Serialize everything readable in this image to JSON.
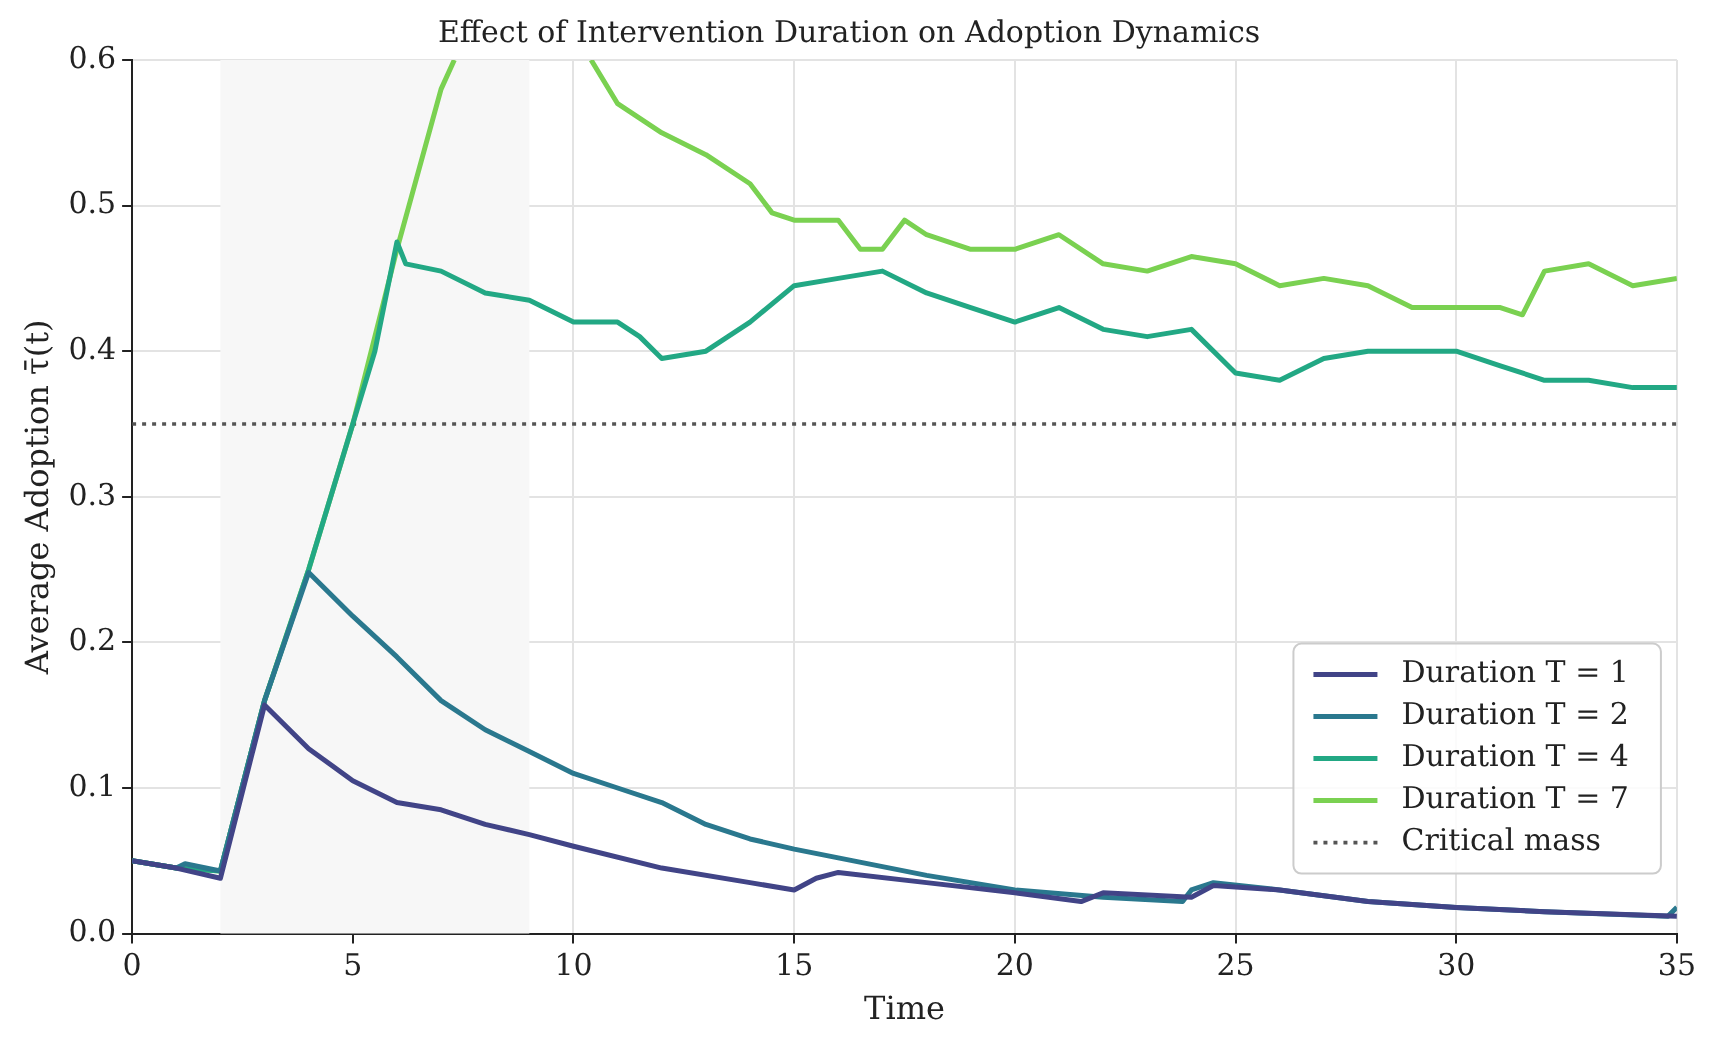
{
  "chart_data": {
    "type": "line",
    "title": "Effect of Intervention Duration on Adoption Dynamics",
    "xlabel": "Time",
    "ylabel": "Average Adoption τ̄(t)",
    "xlim": [
      0,
      35
    ],
    "xticks": [
      0,
      5,
      10,
      15,
      20,
      25,
      30,
      35
    ],
    "ylim": [
      0,
      0.6
    ],
    "yticks": [
      {
        "value": 0,
        "label": "0.0"
      },
      0.1,
      0.2,
      0.3,
      0.4,
      0.5,
      0.6
    ],
    "grid": true,
    "legend": "bottom right",
    "marker": "none",
    "line_style": "solid",
    "bands": [
      {
        "axis": "x",
        "from": 2,
        "to": 9,
        "color": "#f7f7f7"
      }
    ],
    "ref_lines": [
      {
        "axis": "y",
        "value": 0.35,
        "label": "Critical mass",
        "color": "#555555",
        "line_style": "dotted"
      }
    ],
    "series": [
      {
        "name": "Duration T = 1",
        "color": "#414487",
        "x": [
          0,
          1,
          2,
          3,
          4,
          5,
          6,
          7,
          8,
          9,
          10,
          12,
          14,
          15,
          15.5,
          16,
          18,
          20,
          21.5,
          22,
          24,
          24.5,
          26,
          28,
          30,
          32,
          35
        ],
        "values": [
          0.05,
          0.045,
          0.038,
          0.157,
          0.127,
          0.105,
          0.09,
          0.085,
          0.075,
          0.068,
          0.06,
          0.045,
          0.035,
          0.03,
          0.038,
          0.042,
          0.035,
          0.028,
          0.022,
          0.028,
          0.025,
          0.033,
          0.03,
          0.022,
          0.018,
          0.015,
          0.012
        ]
      },
      {
        "name": "Duration T = 2",
        "color": "#2a788e",
        "x": [
          0,
          1,
          1.2,
          2,
          3,
          4,
          5,
          6,
          7,
          8,
          9,
          10,
          11,
          12,
          13,
          14,
          15,
          16,
          18,
          20,
          22,
          23.8,
          24,
          24.5,
          26,
          28,
          30,
          32,
          34.8,
          35
        ],
        "values": [
          0.05,
          0.045,
          0.048,
          0.043,
          0.16,
          0.248,
          0.218,
          0.19,
          0.16,
          0.14,
          0.125,
          0.11,
          0.1,
          0.09,
          0.075,
          0.065,
          0.058,
          0.052,
          0.04,
          0.03,
          0.025,
          0.022,
          0.03,
          0.035,
          0.03,
          0.022,
          0.018,
          0.015,
          0.012,
          0.018
        ]
      },
      {
        "name": "Duration T = 4",
        "color": "#22a884",
        "x": [
          0,
          1,
          2,
          3,
          4,
          5,
          5.5,
          6,
          6.2,
          7,
          8,
          9,
          10,
          11,
          11.5,
          12,
          13,
          14,
          15,
          16,
          17,
          18,
          19,
          20,
          21,
          22,
          23,
          24,
          25,
          26,
          27,
          28,
          29,
          30,
          31,
          32,
          33,
          34,
          35
        ],
        "values": [
          0.05,
          0.045,
          0.043,
          0.16,
          0.25,
          0.35,
          0.4,
          0.475,
          0.46,
          0.455,
          0.44,
          0.435,
          0.42,
          0.42,
          0.41,
          0.395,
          0.4,
          0.42,
          0.445,
          0.45,
          0.455,
          0.44,
          0.43,
          0.42,
          0.43,
          0.415,
          0.41,
          0.415,
          0.385,
          0.38,
          0.395,
          0.4,
          0.4,
          0.4,
          0.39,
          0.38,
          0.38,
          0.375,
          0.375
        ]
      },
      {
        "name": "Duration T = 7",
        "color": "#7ad151",
        "x": [
          0,
          1,
          2,
          3,
          4,
          5,
          6,
          7,
          7.3,
          7.4,
          10.3,
          10.4,
          11,
          12,
          13,
          14,
          14.5,
          15,
          16,
          16.5,
          17,
          17.5,
          18,
          19,
          20,
          21,
          22,
          23,
          24,
          25,
          26,
          27,
          28,
          29,
          30,
          31,
          31.5,
          32,
          33,
          34,
          35
        ],
        "values": [
          0.05,
          0.045,
          0.043,
          0.16,
          0.25,
          0.35,
          0.47,
          0.58,
          0.6,
          null,
          null,
          0.6,
          0.57,
          0.55,
          0.535,
          0.515,
          0.495,
          0.49,
          0.49,
          0.47,
          0.47,
          0.49,
          0.48,
          0.47,
          0.47,
          0.48,
          0.46,
          0.455,
          0.465,
          0.46,
          0.445,
          0.45,
          0.445,
          0.43,
          0.43,
          0.43,
          0.425,
          0.455,
          0.46,
          0.445,
          0.45
        ]
      }
    ]
  }
}
